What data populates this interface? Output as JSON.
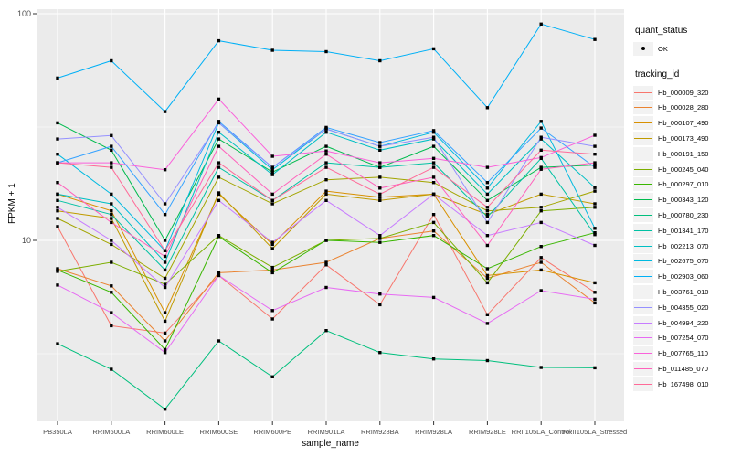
{
  "chart_data": {
    "type": "line",
    "title": "",
    "xlabel": "sample_name",
    "ylabel": "FPKM + 1",
    "y_scale": "log10",
    "y_axis_ticks": [
      "10",
      "100"
    ],
    "y_tick_values": [
      10,
      100
    ],
    "y_minor_grid_values": [
      3.1623,
      31.623
    ],
    "ylim_log10": [
      0.205,
      2.02
    ],
    "grid": true,
    "legend_position": "right",
    "categories": [
      "PB350LA",
      "RRIM600LA",
      "RRIM600LE",
      "RRIM600SE",
      "RRIM600PE",
      "RRIM901LA",
      "RRIM928BA",
      "RRIM928LA",
      "RRIM928LE",
      "RRII105LA_Control",
      "RRII105LA_Stressed"
    ],
    "series": [
      {
        "name": "Hb_000009_320",
        "color": "#F8766D",
        "values": [
          11.5,
          4.2,
          3.9,
          7.0,
          4.5,
          7.8,
          5.2,
          13,
          4.7,
          8.4,
          5.9
        ]
      },
      {
        "name": "Hb_000028_280",
        "color": "#EA8331",
        "values": [
          7.5,
          6.3,
          3.6,
          7.2,
          7.4,
          8.0,
          10.2,
          11,
          6.8,
          8.0,
          5.3
        ]
      },
      {
        "name": "Hb_000107_490",
        "color": "#D89000",
        "values": [
          16,
          13.5,
          4.8,
          16,
          9.6,
          16.5,
          15.5,
          16,
          7.0,
          7.4,
          6.5
        ]
      },
      {
        "name": "Hb_000173_490",
        "color": "#C09B00",
        "values": [
          13.5,
          12.5,
          4.4,
          16.2,
          9.2,
          16,
          15,
          16,
          13,
          16,
          14.5
        ]
      },
      {
        "name": "Hb_000191_150",
        "color": "#A3A500",
        "values": [
          12.5,
          9.6,
          6.8,
          19,
          14.5,
          18.5,
          19,
          18,
          13.5,
          14,
          16.5
        ]
      },
      {
        "name": "Hb_000245_040",
        "color": "#7CAE00",
        "values": [
          7.3,
          8.0,
          6.4,
          10.5,
          7.6,
          10,
          10.2,
          12,
          6.5,
          13.5,
          14
        ]
      },
      {
        "name": "Hb_000297_010",
        "color": "#39B600",
        "values": [
          7.4,
          5.9,
          3.3,
          10.4,
          7.2,
          10,
          9.8,
          10.5,
          7.5,
          9.4,
          10.8
        ]
      },
      {
        "name": "Hb_000343_120",
        "color": "#00BB4E",
        "values": [
          33,
          25,
          10,
          28,
          20,
          26,
          21,
          26,
          15,
          21,
          21.5
        ]
      },
      {
        "name": "Hb_000780_230",
        "color": "#00BF7D",
        "values": [
          3.5,
          2.7,
          1.8,
          3.6,
          2.5,
          4.0,
          3.2,
          3.0,
          2.95,
          2.75,
          2.74
        ]
      },
      {
        "name": "Hb_001341_170",
        "color": "#00C1A3",
        "values": [
          15,
          13,
          7.4,
          21,
          15,
          22,
          21,
          22,
          12.7,
          23,
          10.6
        ]
      },
      {
        "name": "Hb_002213_070",
        "color": "#00BFC4",
        "values": [
          16,
          14.5,
          8.0,
          30,
          19.5,
          30,
          25,
          28,
          16,
          28,
          17.1
        ]
      },
      {
        "name": "Hb_002675_070",
        "color": "#00BAE0",
        "values": [
          24,
          16,
          9.0,
          33,
          20.5,
          31,
          26,
          30,
          17,
          33.5,
          11.3
        ]
      },
      {
        "name": "Hb_002903_060",
        "color": "#00B0F6",
        "values": [
          52,
          62,
          37,
          76,
          69,
          68,
          62,
          70,
          38.5,
          90,
          77
        ]
      },
      {
        "name": "Hb_003761_010",
        "color": "#35A2FF",
        "values": [
          22,
          26,
          13,
          33.5,
          21,
          31.5,
          27,
          30.5,
          18,
          31.3,
          21
        ]
      },
      {
        "name": "Hb_004355_020",
        "color": "#9590FF",
        "values": [
          28,
          29,
          14.5,
          33,
          21,
          31,
          26,
          28.5,
          12,
          28.5,
          26
        ]
      },
      {
        "name": "Hb_004994_220",
        "color": "#C77CFF",
        "values": [
          14,
          10,
          6.2,
          15,
          9.8,
          15,
          10.5,
          16,
          10.5,
          12,
          9.5
        ]
      },
      {
        "name": "Hb_007254_070",
        "color": "#E76BF3",
        "values": [
          6.35,
          4.8,
          3.2,
          7.0,
          4.9,
          6.2,
          5.8,
          5.6,
          4.3,
          6.0,
          5.5
        ]
      },
      {
        "name": "Hb_007765_110",
        "color": "#FA62DB",
        "values": [
          22,
          22,
          20.5,
          42,
          23.5,
          24.8,
          22,
          23,
          21,
          23.2,
          29.1
        ]
      },
      {
        "name": "Hb_011485_070",
        "color": "#FF62BC",
        "values": [
          18,
          12,
          8.5,
          26,
          16,
          24,
          17,
          19,
          9.5,
          20.6,
          22
        ]
      },
      {
        "name": "Hb_167498_010",
        "color": "#FF6A98",
        "values": [
          22,
          21,
          9.0,
          22,
          15,
          21,
          16,
          21,
          14,
          25,
          24
        ]
      }
    ],
    "colors": {
      "panel_bg": "#EBEBEB",
      "grid": "#FFFFFF",
      "marker": "#000000",
      "axis_text": "#4D4D4D",
      "tick_mark": "#333333",
      "legend_key_bg": "#F2F2F2"
    }
  },
  "legend": {
    "quant_status": {
      "title": "quant_status",
      "items": [
        {
          "label": "OK",
          "marker": "black-point"
        }
      ]
    },
    "tracking_id": {
      "title": "tracking_id"
    }
  }
}
